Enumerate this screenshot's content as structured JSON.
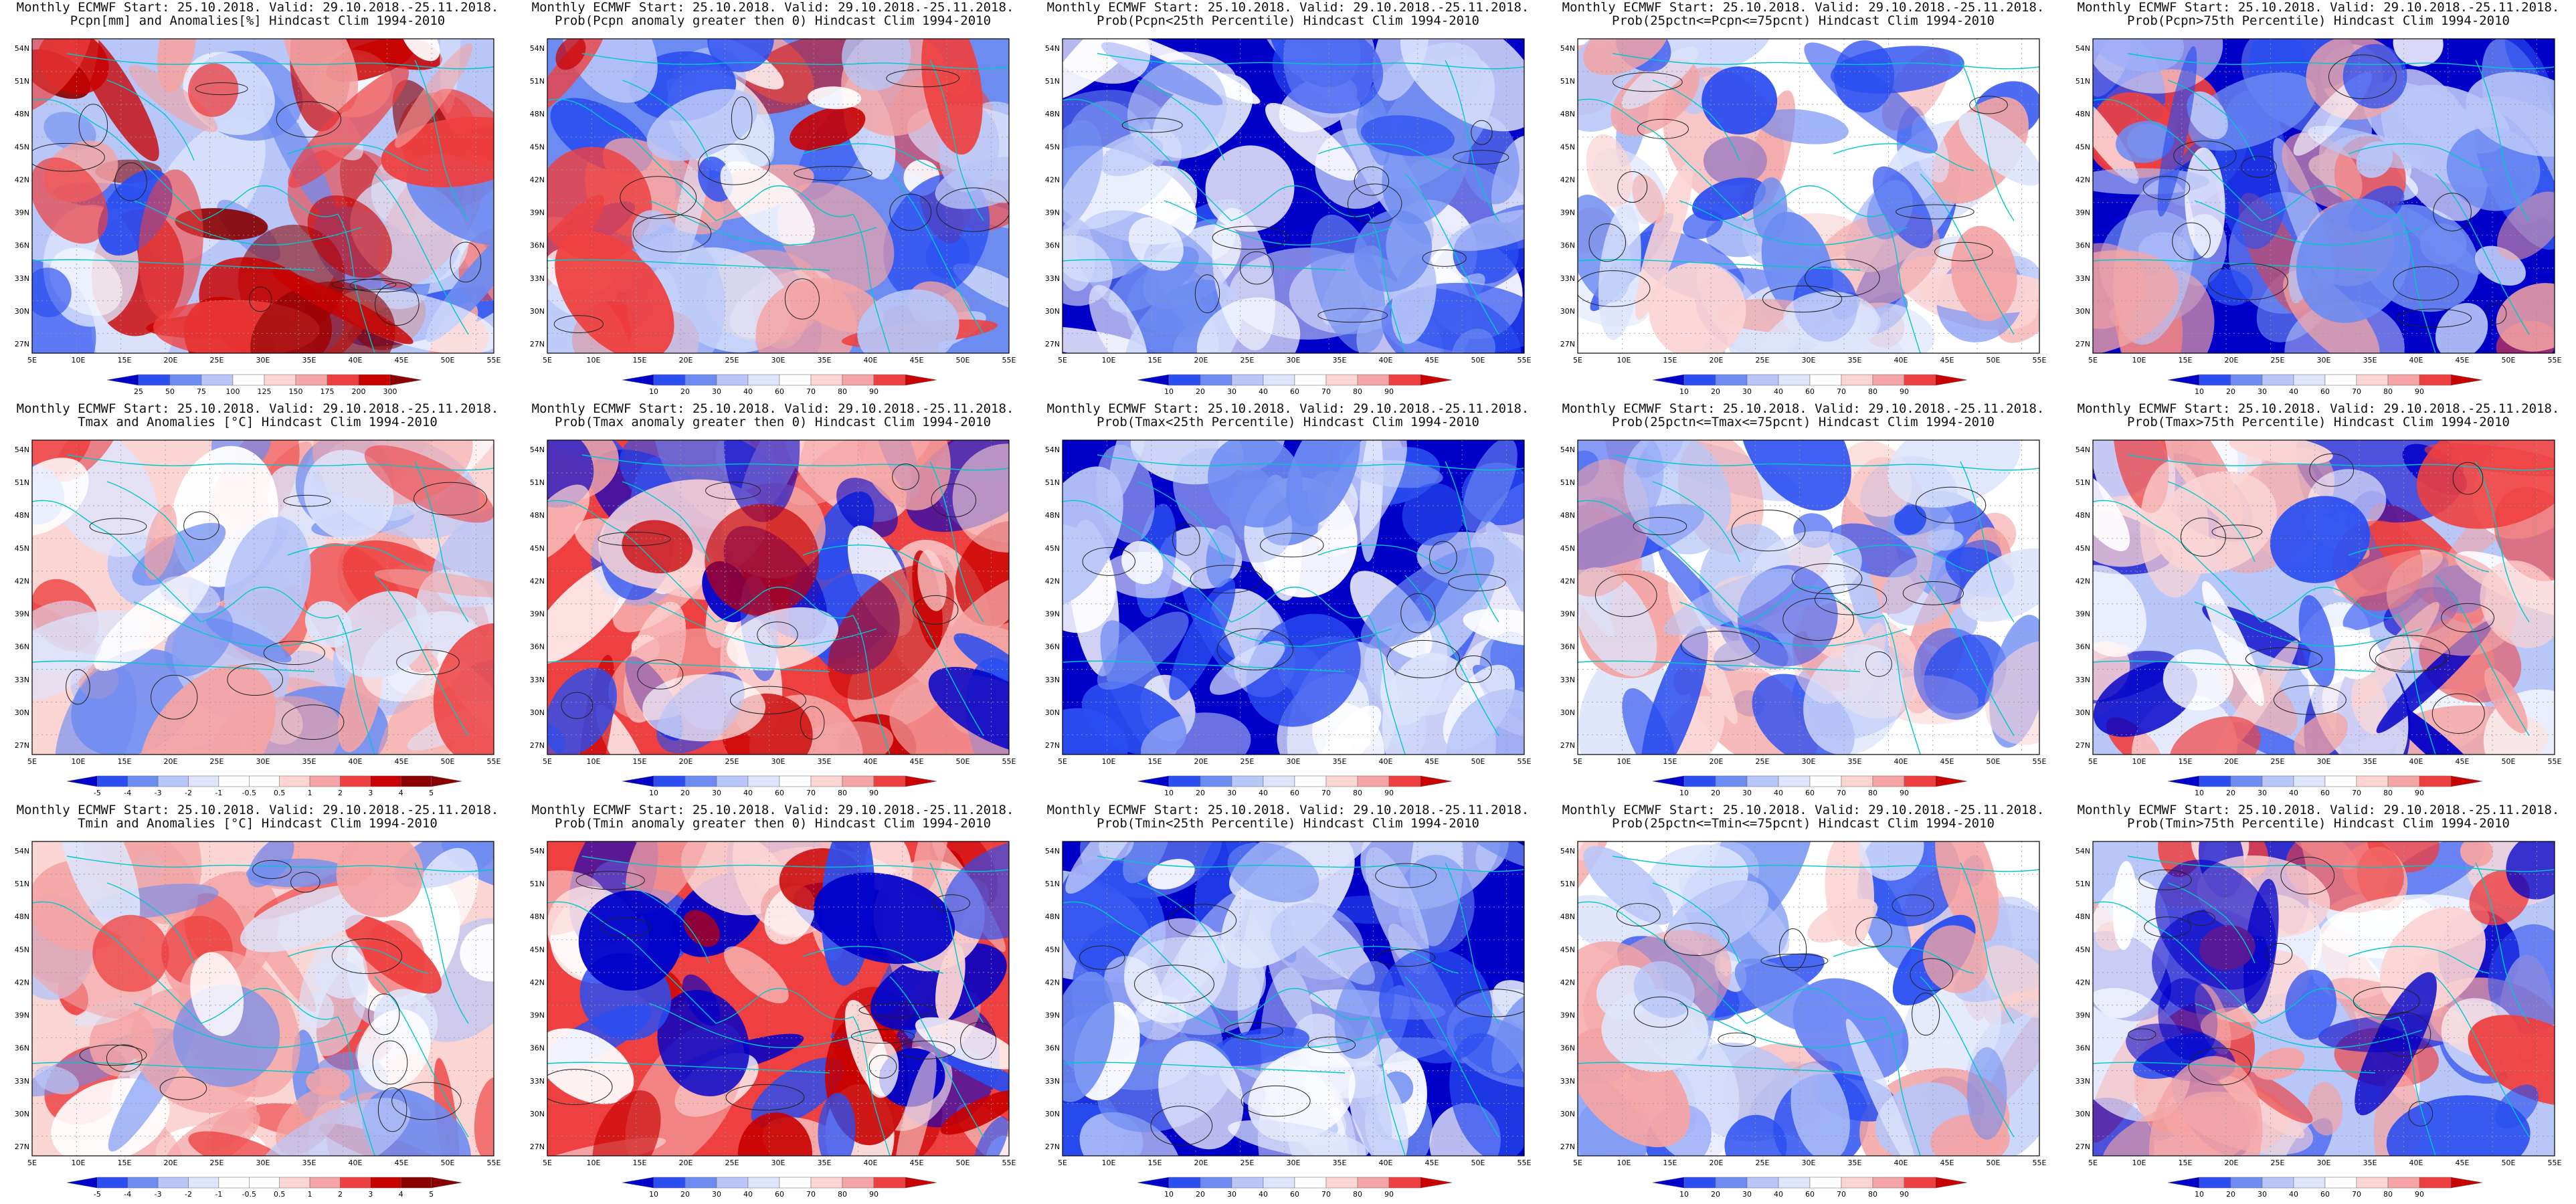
{
  "colors": {
    "deep_blue": "#0000c8",
    "blue": "#2a4ef0",
    "mid_blue": "#6d8cf2",
    "light_blue": "#b8c6f8",
    "pale_blue": "#dde4fb",
    "white": "#ffffff",
    "pale_red": "#fbd4d4",
    "light_red": "#f4a4a4",
    "red": "#ee4040",
    "dark_red": "#c80000",
    "maroon": "#8a0000",
    "coast": "#00c8c8",
    "contour": "#222222"
  },
  "map": {
    "lat_labels": [
      "54N",
      "51N",
      "48N",
      "45N",
      "42N",
      "39N",
      "36N",
      "33N",
      "30N",
      "27N"
    ],
    "lon_labels": [
      "5E",
      "10E",
      "15E",
      "20E",
      "25E",
      "30E",
      "35E",
      "40E",
      "45E",
      "50E",
      "55E"
    ]
  },
  "legends": {
    "pcpn_anom": [
      "25",
      "50",
      "75",
      "100",
      "125",
      "150",
      "175",
      "200",
      "300"
    ],
    "prob": [
      "10",
      "20",
      "30",
      "40",
      "60",
      "70",
      "80",
      "90"
    ],
    "temp_anom": [
      "-5",
      "-4",
      "-3",
      "-2",
      "-1",
      "-0.5",
      "0.5",
      "1",
      "2",
      "3",
      "4",
      "5"
    ]
  },
  "panels": [
    {
      "title1": "Monthly ECMWF Start: 25.10.2018. Valid: 29.10.2018.-25.11.2018.",
      "title2": "Pcpn[mm] and Anomalies[%] Hindcast Clim 1994-2010",
      "legend": "pcpn_anom",
      "style": "pcpn_anom"
    },
    {
      "title1": "Monthly ECMWF Start: 25.10.2018. Valid: 29.10.2018.-25.11.2018.",
      "title2": "Prob(Pcpn anomaly greater then 0) Hindcast Clim 1994-2010",
      "legend": "prob",
      "style": "pcpn_prob"
    },
    {
      "title1": "Monthly ECMWF Start: 25.10.2018. Valid: 29.10.2018.-25.11.2018.",
      "title2": "Prob(Pcpn<25th Percentile) Hindcast Clim 1994-2010",
      "legend": "prob",
      "style": "low_blue"
    },
    {
      "title1": "Monthly ECMWF Start: 25.10.2018. Valid: 29.10.2018.-25.11.2018.",
      "title2": "Prob(25pctn<=Pcpn<=75pcnt) Hindcast Clim 1994-2010",
      "legend": "prob",
      "style": "mid_mixed"
    },
    {
      "title1": "Monthly ECMWF Start: 25.10.2018. Valid: 29.10.2018.-25.11.2018.",
      "title2": "Prob(Pcpn>75th Percentile) Hindcast Clim 1994-2010",
      "legend": "prob",
      "style": "high_blue"
    },
    {
      "title1": "Monthly ECMWF Start: 25.10.2018. Valid: 29.10.2018.-25.11.2018.",
      "title2": "Tmax and Anomalies [°C] Hindcast Clim 1994-2010",
      "legend": "temp_anom",
      "style": "temp_anom"
    },
    {
      "title1": "Monthly ECMWF Start: 25.10.2018. Valid: 29.10.2018.-25.11.2018.",
      "title2": "Prob(Tmax anomaly greater then 0) Hindcast Clim 1994-2010",
      "legend": "prob",
      "style": "warm_prob"
    },
    {
      "title1": "Monthly ECMWF Start: 25.10.2018. Valid: 29.10.2018.-25.11.2018.",
      "title2": "Prob(Tmax<25th Percentile) Hindcast Clim 1994-2010",
      "legend": "prob",
      "style": "low_blue"
    },
    {
      "title1": "Monthly ECMWF Start: 25.10.2018. Valid: 29.10.2018.-25.11.2018.",
      "title2": "Prob(25pctn<=Tmax<=75pcnt) Hindcast Clim 1994-2010",
      "legend": "prob",
      "style": "mid_mixed"
    },
    {
      "title1": "Monthly ECMWF Start: 25.10.2018. Valid: 29.10.2018.-25.11.2018.",
      "title2": "Prob(Tmax>75th Percentile) Hindcast Clim 1994-2010",
      "legend": "prob",
      "style": "high_mixed"
    },
    {
      "title1": "Monthly ECMWF Start: 25.10.2018. Valid: 29.10.2018.-25.11.2018.",
      "title2": "Tmin and Anomalies [°C] Hindcast Clim 1994-2010",
      "legend": "temp_anom",
      "style": "temp_anom"
    },
    {
      "title1": "Monthly ECMWF Start: 25.10.2018. Valid: 29.10.2018.-25.11.2018.",
      "title2": "Prob(Tmin anomaly greater then 0) Hindcast Clim 1994-2010",
      "legend": "prob",
      "style": "warm_prob"
    },
    {
      "title1": "Monthly ECMWF Start: 25.10.2018. Valid: 29.10.2018.-25.11.2018.",
      "title2": "Prob(Tmin<25th Percentile) Hindcast Clim 1994-2010",
      "legend": "prob",
      "style": "low_blue"
    },
    {
      "title1": "Monthly ECMWF Start: 25.10.2018. Valid: 29.10.2018.-25.11.2018.",
      "title2": "Prob(25pctn<=Tmin<=75pcnt) Hindcast Clim 1994-2010",
      "legend": "prob",
      "style": "mid_mixed"
    },
    {
      "title1": "Monthly ECMWF Start: 25.10.2018. Valid: 29.10.2018.-25.11.2018.",
      "title2": "Prob(Tmin>75th Percentile) Hindcast Clim 1994-2010",
      "legend": "prob",
      "style": "high_mixed"
    }
  ]
}
